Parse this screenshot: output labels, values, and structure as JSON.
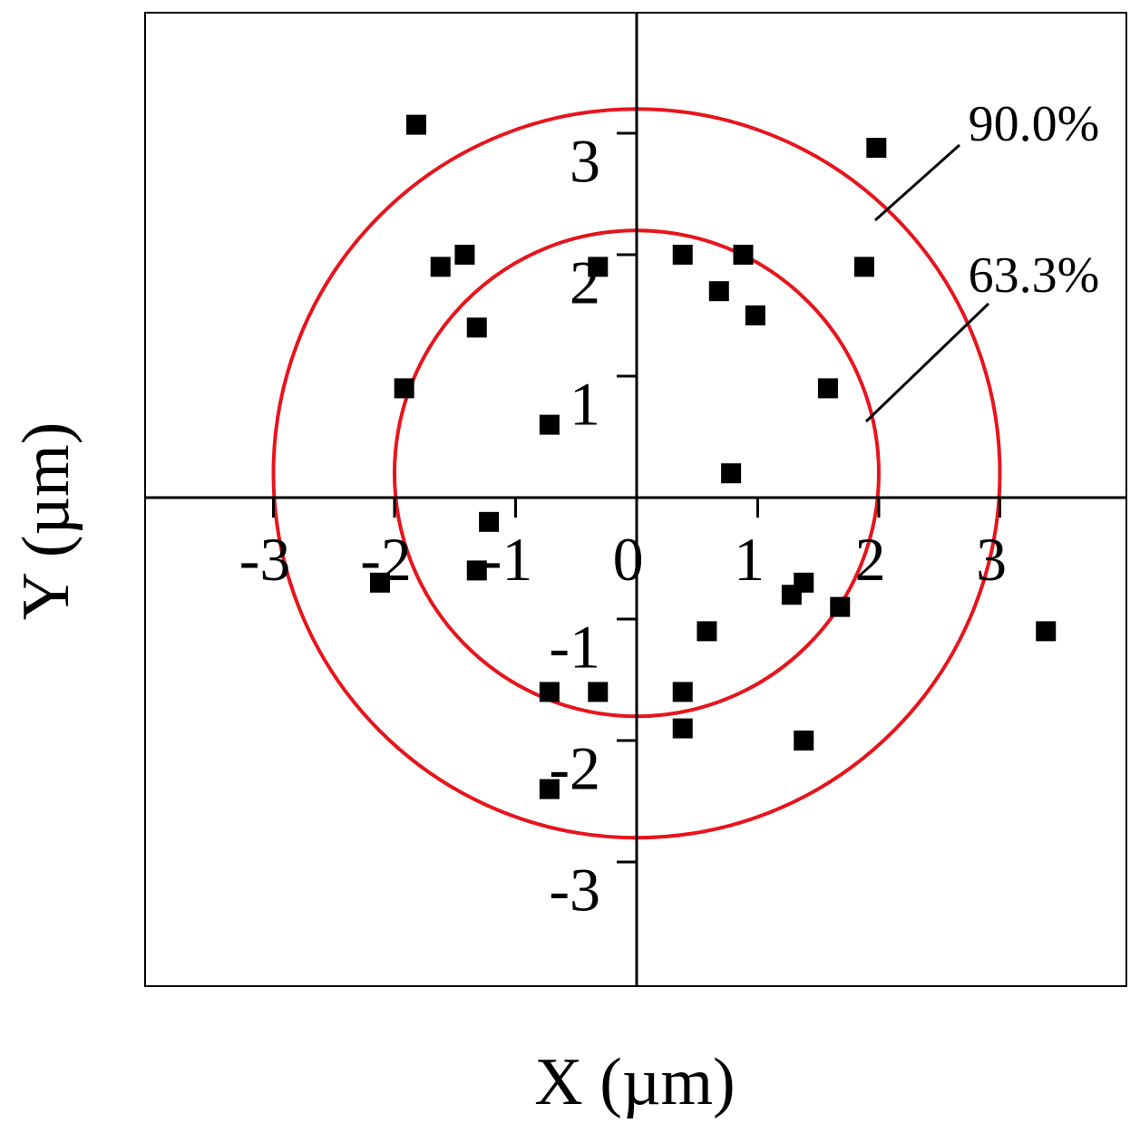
{
  "chart_data": {
    "type": "scatter",
    "title": "",
    "xlabel": "X (µm)",
    "ylabel": "Y (µm)",
    "xlim": [
      -4,
      4
    ],
    "ylim": [
      -4,
      4
    ],
    "x_ticks": [
      -3,
      -2,
      -1,
      0,
      1,
      2,
      3
    ],
    "y_ticks": [
      -3,
      -2,
      -1,
      1,
      2,
      3
    ],
    "x_tick_labels": [
      "-3",
      "-2",
      "-1",
      "0",
      "1",
      "2",
      "3"
    ],
    "y_tick_labels": [
      "-3",
      "-2",
      "-1",
      "1",
      "2",
      "3"
    ],
    "grid": false,
    "colors": {
      "points": "#000000",
      "circles": "#e8141c",
      "axes": "#000000"
    },
    "series": [
      {
        "points": [
          {
            "x": -1.82,
            "y": 3.07
          },
          {
            "x": 1.98,
            "y": 2.88
          },
          {
            "x": -1.62,
            "y": 1.9
          },
          {
            "x": -1.42,
            "y": 2.0
          },
          {
            "x": -0.32,
            "y": 1.9
          },
          {
            "x": 0.38,
            "y": 2.0
          },
          {
            "x": 0.88,
            "y": 2.0
          },
          {
            "x": 1.88,
            "y": 1.9
          },
          {
            "x": 0.68,
            "y": 1.7
          },
          {
            "x": 0.98,
            "y": 1.5
          },
          {
            "x": -1.32,
            "y": 1.4
          },
          {
            "x": -1.92,
            "y": 0.9
          },
          {
            "x": 1.58,
            "y": 0.9
          },
          {
            "x": -0.72,
            "y": 0.6
          },
          {
            "x": 0.78,
            "y": 0.2
          },
          {
            "x": -1.22,
            "y": -0.2
          },
          {
            "x": -2.12,
            "y": -0.7
          },
          {
            "x": -1.32,
            "y": -0.6
          },
          {
            "x": 1.38,
            "y": -0.7
          },
          {
            "x": 1.28,
            "y": -0.8
          },
          {
            "x": 1.68,
            "y": -0.9
          },
          {
            "x": 0.58,
            "y": -1.1
          },
          {
            "x": 3.38,
            "y": -1.1
          },
          {
            "x": -0.72,
            "y": -1.6
          },
          {
            "x": -0.32,
            "y": -1.6
          },
          {
            "x": 0.38,
            "y": -1.6
          },
          {
            "x": 0.38,
            "y": -1.9
          },
          {
            "x": 1.38,
            "y": -2.0
          },
          {
            "x": -0.72,
            "y": -2.4
          }
        ]
      }
    ],
    "circles": [
      {
        "label": "63.3%",
        "cx": 0.0,
        "cy": 0.2,
        "r": 2.0
      },
      {
        "label": "90.0%",
        "cx": 0.0,
        "cy": 0.2,
        "r": 3.0
      }
    ]
  }
}
